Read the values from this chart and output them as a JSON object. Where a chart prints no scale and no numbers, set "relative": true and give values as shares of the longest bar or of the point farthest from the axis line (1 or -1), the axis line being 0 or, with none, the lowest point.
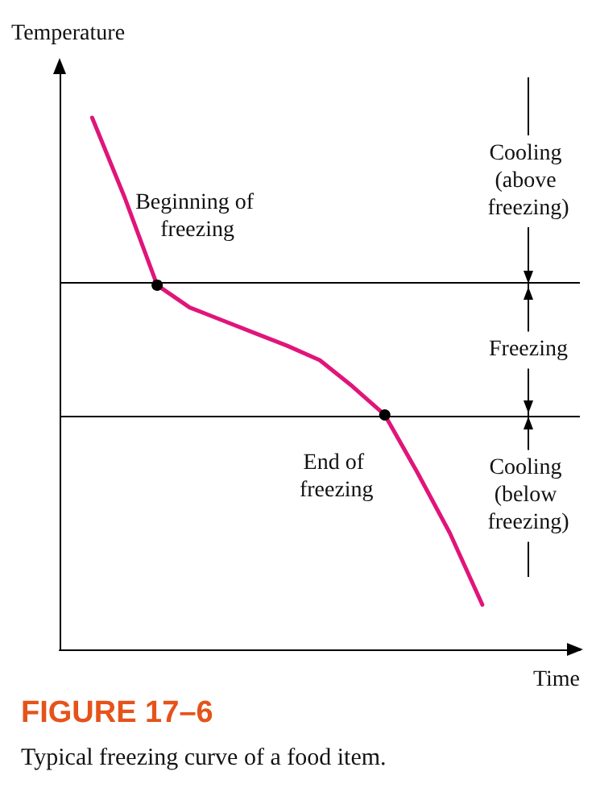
{
  "chart_data": {
    "type": "line",
    "title": "FIGURE 17–6",
    "subtitle": "Typical freezing curve of a food item.",
    "xlabel": "Time",
    "ylabel": "Temperature",
    "relative": true,
    "grid": false,
    "marker": "none",
    "line_style": "solid",
    "categories": [
      null,
      null,
      null,
      null,
      null,
      null,
      null,
      null,
      null,
      null,
      null,
      null,
      null,
      null,
      null,
      null,
      null
    ],
    "series": [
      {
        "color": "#e0157a",
        "values": [
          null,
          1.0,
          0.85,
          0.685,
          0.643,
          0.619,
          0.595,
          0.571,
          0.544,
          0.495,
          0.441,
          0.333,
          0.219,
          0.084,
          null,
          null,
          null
        ]
      }
    ],
    "ref_lines": [
      {
        "axis": "y",
        "value": 0.685,
        "color": "#000000",
        "line_style": "solid"
      },
      {
        "axis": "y",
        "value": 0.441,
        "color": "#000000",
        "line_style": "solid"
      }
    ],
    "annotations": [
      {
        "text": "Beginning of freezing",
        "y": 0.685
      },
      {
        "text": "End of freezing",
        "y": 0.441
      },
      "Cooling (above freezing)",
      "Freezing",
      "Cooling (below freezing)"
    ]
  }
}
